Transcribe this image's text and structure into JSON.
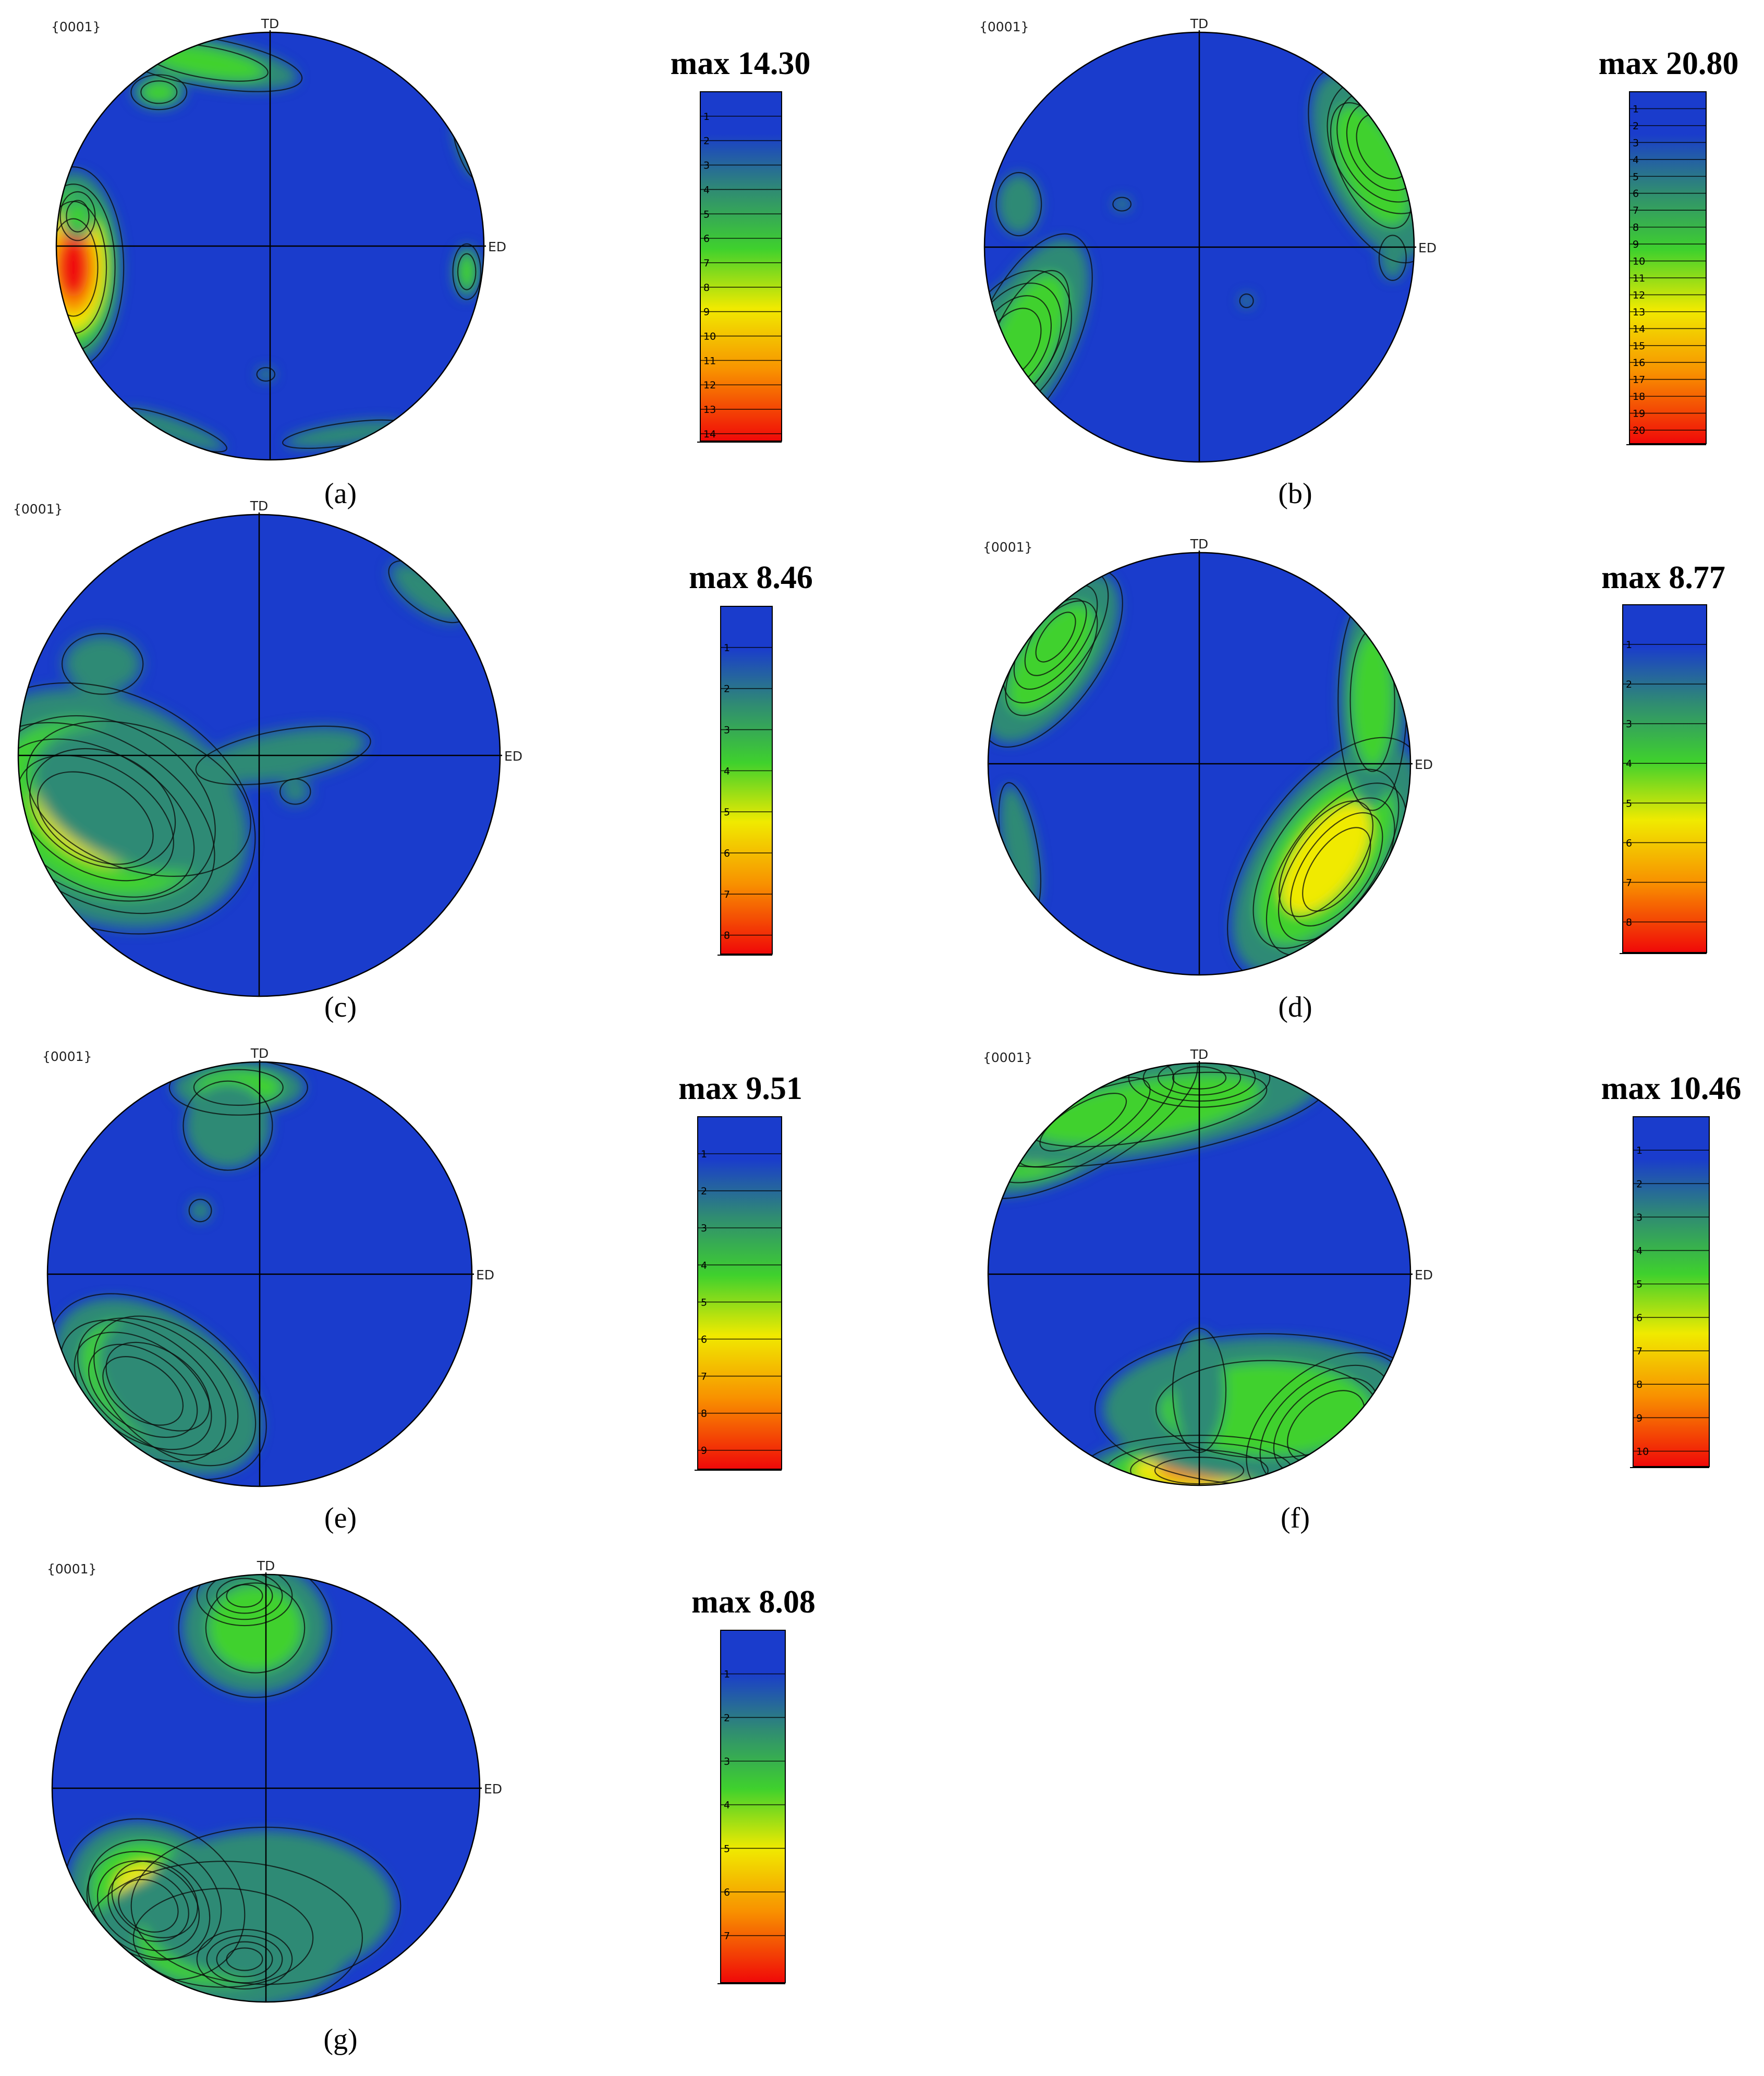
{
  "colors": {
    "low": "#1a3ccc",
    "teal": "#2f8a74",
    "green": "#3fd12d",
    "yellow": "#f0ea00",
    "orange": "#f89000",
    "high": "#f00808",
    "axis": "#000000"
  },
  "panels": [
    {
      "id": "a",
      "plane_label": "{0001}",
      "td_label": "TD",
      "ed_label": "ED",
      "legend_title": "max 14.30",
      "legend_ticks": [
        "1",
        "2",
        "3",
        "4",
        "5",
        "6",
        "7",
        "8",
        "9",
        "10",
        "11",
        "12",
        "13",
        "14"
      ],
      "max_value": 14.3,
      "caption": "(a)"
    },
    {
      "id": "b",
      "plane_label": "{0001}",
      "td_label": "TD",
      "ed_label": "ED",
      "legend_title": "max 20.80",
      "legend_ticks": [
        "1",
        "2",
        "3",
        "4",
        "5",
        "6",
        "7",
        "8",
        "9",
        "10",
        "11",
        "12",
        "13",
        "14",
        "15",
        "16",
        "17",
        "18",
        "19",
        "20"
      ],
      "max_value": 20.8,
      "caption": "(b)"
    },
    {
      "id": "c",
      "plane_label": "{0001}",
      "td_label": "TD",
      "ed_label": "ED",
      "legend_title": "max 8.46",
      "legend_ticks": [
        "1",
        "2",
        "3",
        "4",
        "5",
        "6",
        "7",
        "8"
      ],
      "max_value": 8.46,
      "caption": "(c)"
    },
    {
      "id": "d",
      "plane_label": "{0001}",
      "td_label": "TD",
      "ed_label": "ED",
      "legend_title": "max 8.77",
      "legend_ticks": [
        "1",
        "2",
        "3",
        "4",
        "5",
        "6",
        "7",
        "8"
      ],
      "max_value": 8.77,
      "caption": "(d)"
    },
    {
      "id": "e",
      "plane_label": "{0001}",
      "td_label": "TD",
      "ed_label": "ED",
      "legend_title": "max 9.51",
      "legend_ticks": [
        "1",
        "2",
        "3",
        "4",
        "5",
        "6",
        "7",
        "8",
        "9"
      ],
      "max_value": 9.51,
      "caption": "(e)"
    },
    {
      "id": "f",
      "plane_label": "{0001}",
      "td_label": "TD",
      "ed_label": "ED",
      "legend_title": "max 10.46",
      "legend_ticks": [
        "1",
        "2",
        "3",
        "4",
        "5",
        "6",
        "7",
        "8",
        "9",
        "10"
      ],
      "max_value": 10.46,
      "caption": "(f)"
    },
    {
      "id": "g",
      "plane_label": "{0001}",
      "td_label": "TD",
      "ed_label": "ED",
      "legend_title": "max 8.08",
      "legend_ticks": [
        "1",
        "2",
        "3",
        "4",
        "5",
        "6",
        "7"
      ],
      "max_value": 8.08,
      "caption": "(g)"
    }
  ]
}
